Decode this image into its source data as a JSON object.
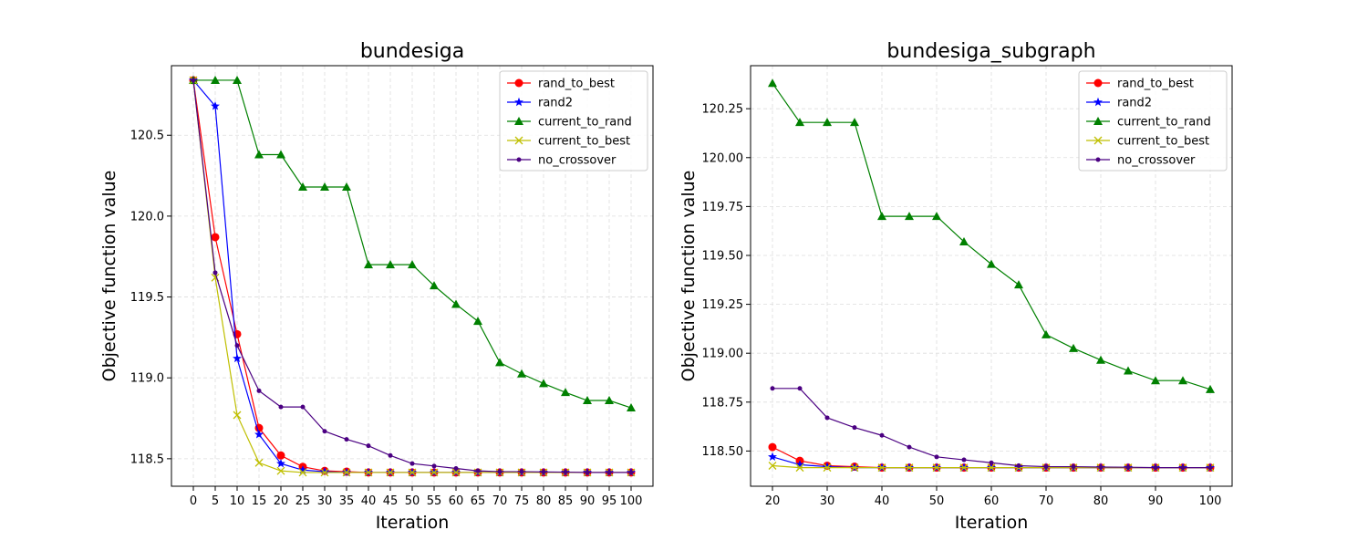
{
  "chart_data": [
    {
      "type": "line",
      "title": "bundesiga",
      "xlabel": "Iteration",
      "ylabel": "Objective function value",
      "x": [
        0,
        5,
        10,
        15,
        20,
        25,
        30,
        35,
        40,
        45,
        50,
        55,
        60,
        65,
        70,
        75,
        80,
        85,
        90,
        95,
        100
      ],
      "xticks": [
        0,
        5,
        10,
        15,
        20,
        25,
        30,
        35,
        40,
        45,
        50,
        55,
        60,
        65,
        70,
        75,
        80,
        85,
        90,
        95,
        100
      ],
      "xtick_labels": [
        "0",
        "5",
        "10",
        "15",
        "20",
        "25",
        "30",
        "35",
        "40",
        "45",
        "50",
        "55",
        "60",
        "65",
        "70",
        "75",
        "80",
        "85",
        "90",
        "95",
        "100"
      ],
      "yticks": [
        118.5,
        119.0,
        119.5,
        120.0,
        120.5
      ],
      "ytick_labels": [
        "118.5",
        "119.0",
        "119.5",
        "120.0",
        "120.5"
      ],
      "xlim": [
        -5,
        105
      ],
      "ylim": [
        118.33,
        120.93
      ],
      "grid": true,
      "legend": "top-right",
      "series": [
        {
          "name": "rand_to_best",
          "color": "#ff0000",
          "marker": "circle",
          "values": [
            120.84,
            119.87,
            119.27,
            118.69,
            118.52,
            118.45,
            118.425,
            118.42,
            118.415,
            118.415,
            118.415,
            118.415,
            118.415,
            118.415,
            118.415,
            118.415,
            118.415,
            118.415,
            118.415,
            118.415,
            118.415
          ]
        },
        {
          "name": "rand2",
          "color": "#0000ff",
          "marker": "star",
          "values": [
            120.84,
            120.68,
            119.12,
            118.65,
            118.47,
            118.43,
            118.42,
            118.415,
            118.415,
            118.415,
            118.415,
            118.415,
            118.415,
            118.415,
            118.415,
            118.415,
            118.415,
            118.415,
            118.415,
            118.415,
            118.415
          ]
        },
        {
          "name": "current_to_rand",
          "color": "#008000",
          "marker": "triangle",
          "values": [
            120.84,
            120.84,
            120.84,
            120.38,
            120.38,
            120.18,
            120.18,
            120.18,
            119.7,
            119.7,
            119.7,
            119.57,
            119.455,
            119.35,
            119.095,
            119.025,
            118.965,
            118.91,
            118.86,
            118.86,
            118.815
          ]
        },
        {
          "name": "current_to_best",
          "color": "#bfbf00",
          "marker": "x",
          "values": [
            120.84,
            119.62,
            118.77,
            118.475,
            118.425,
            118.415,
            118.415,
            118.415,
            118.415,
            118.415,
            118.415,
            118.415,
            118.415,
            118.415,
            118.415,
            118.415,
            118.415,
            118.415,
            118.415,
            118.415,
            118.415
          ]
        },
        {
          "name": "no_crossover",
          "color": "#4b0082",
          "marker": "dot",
          "values": [
            120.84,
            119.65,
            119.2,
            118.92,
            118.82,
            118.82,
            118.67,
            118.62,
            118.58,
            118.52,
            118.47,
            118.455,
            118.44,
            118.425,
            118.42,
            118.42,
            118.418,
            118.417,
            118.415,
            118.415,
            118.415
          ]
        }
      ]
    },
    {
      "type": "line",
      "title": "bundesiga_subgraph",
      "xlabel": "Iteration",
      "ylabel": "Objective function value",
      "x": [
        20,
        25,
        30,
        35,
        40,
        45,
        50,
        55,
        60,
        65,
        70,
        75,
        80,
        85,
        90,
        95,
        100
      ],
      "xticks": [
        20,
        30,
        40,
        50,
        60,
        70,
        80,
        90,
        100
      ],
      "xtick_labels": [
        "20",
        "30",
        "40",
        "50",
        "60",
        "70",
        "80",
        "90",
        "100"
      ],
      "yticks": [
        118.5,
        118.75,
        119.0,
        119.25,
        119.5,
        119.75,
        120.0,
        120.25
      ],
      "ytick_labels": [
        "118.50",
        "118.75",
        "119.00",
        "119.25",
        "119.50",
        "119.75",
        "120.00",
        "120.25"
      ],
      "xlim": [
        16,
        104
      ],
      "ylim": [
        118.32,
        120.47
      ],
      "grid": true,
      "legend": "top-right",
      "series": [
        {
          "name": "rand_to_best",
          "color": "#ff0000",
          "marker": "circle",
          "values": [
            118.52,
            118.45,
            118.425,
            118.42,
            118.415,
            118.415,
            118.415,
            118.415,
            118.415,
            118.415,
            118.415,
            118.415,
            118.415,
            118.415,
            118.415,
            118.415,
            118.415
          ]
        },
        {
          "name": "rand2",
          "color": "#0000ff",
          "marker": "star",
          "values": [
            118.47,
            118.43,
            118.42,
            118.415,
            118.415,
            118.415,
            118.415,
            118.415,
            118.415,
            118.415,
            118.415,
            118.415,
            118.415,
            118.415,
            118.415,
            118.415,
            118.415
          ]
        },
        {
          "name": "current_to_rand",
          "color": "#008000",
          "marker": "triangle",
          "values": [
            120.38,
            120.18,
            120.18,
            120.18,
            119.7,
            119.7,
            119.7,
            119.57,
            119.455,
            119.35,
            119.095,
            119.025,
            118.965,
            118.91,
            118.86,
            118.86,
            118.815
          ]
        },
        {
          "name": "current_to_best",
          "color": "#bfbf00",
          "marker": "x",
          "values": [
            118.425,
            118.415,
            118.415,
            118.415,
            118.415,
            118.415,
            118.415,
            118.415,
            118.415,
            118.415,
            118.415,
            118.415,
            118.415,
            118.415,
            118.415,
            118.415,
            118.415
          ]
        },
        {
          "name": "no_crossover",
          "color": "#4b0082",
          "marker": "dot",
          "values": [
            118.82,
            118.82,
            118.67,
            118.62,
            118.58,
            118.52,
            118.47,
            118.455,
            118.44,
            118.425,
            118.42,
            118.42,
            118.418,
            118.417,
            118.415,
            118.415,
            118.415
          ]
        }
      ]
    }
  ]
}
